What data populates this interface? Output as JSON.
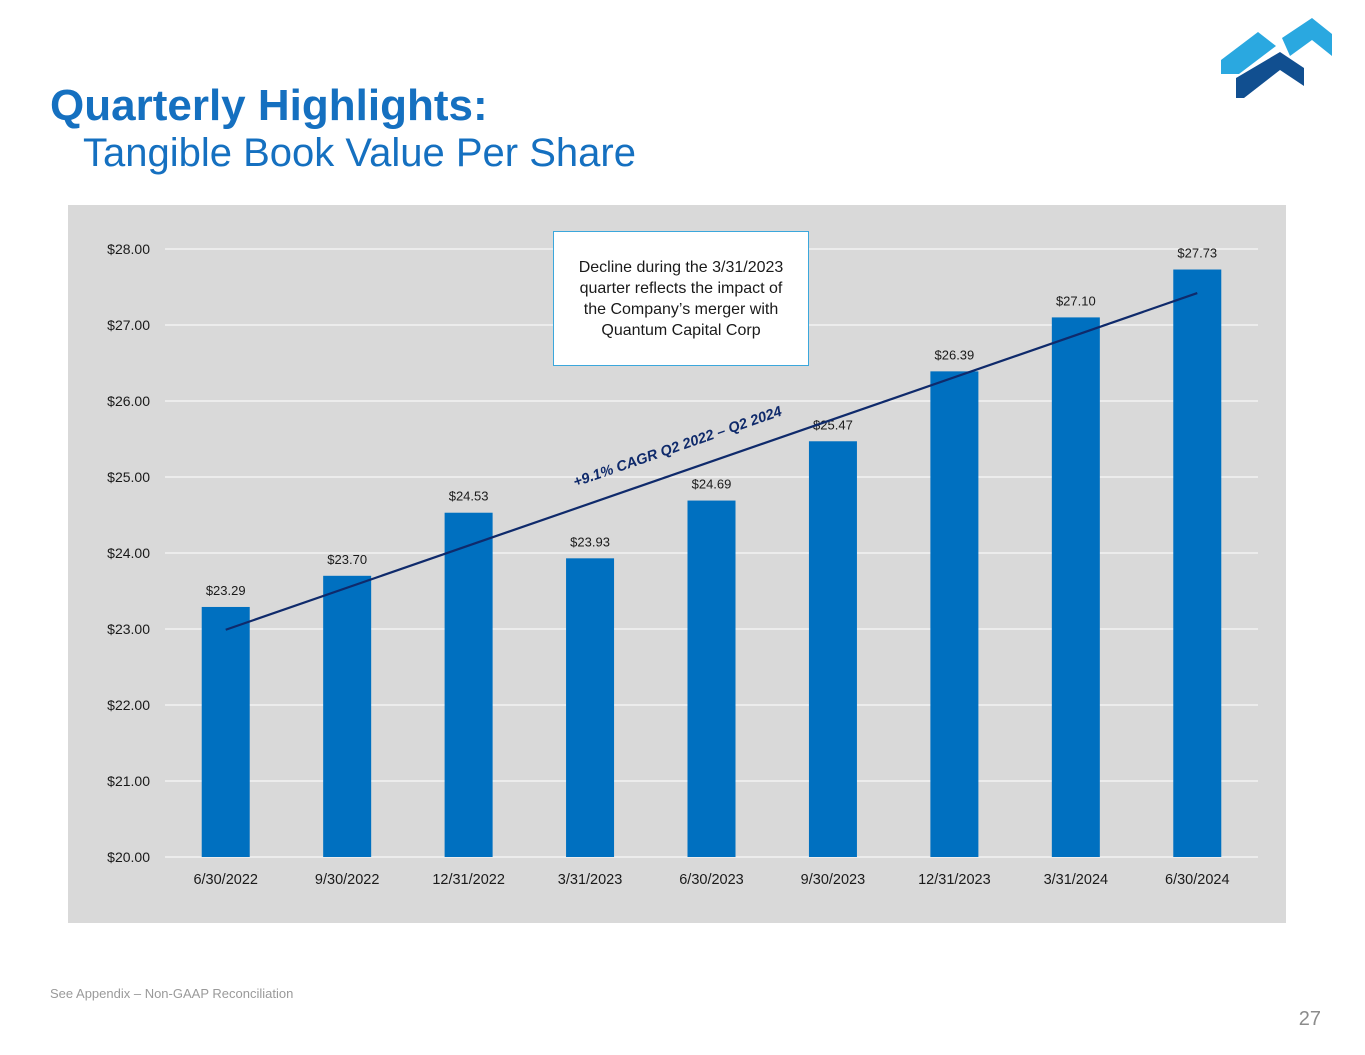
{
  "header": {
    "title": "Quarterly Highlights:",
    "subtitle": "Tangible Book Value Per Share"
  },
  "logo": {
    "icon": "company-logo",
    "colors": [
      "#2aa8e0",
      "#1a72bd",
      "#114f90"
    ]
  },
  "chart_data": {
    "type": "bar",
    "title": "",
    "xlabel": "",
    "ylabel": "",
    "categories": [
      "6/30/2022",
      "9/30/2022",
      "12/31/2022",
      "3/31/2023",
      "6/30/2023",
      "9/30/2023",
      "12/31/2023",
      "3/31/2024",
      "6/30/2024"
    ],
    "values": [
      23.29,
      23.7,
      24.53,
      23.93,
      24.69,
      25.47,
      26.39,
      27.1,
      27.73
    ],
    "data_labels": [
      "$23.29",
      "$23.70",
      "$24.53",
      "$23.93",
      "$24.69",
      "$25.47",
      "$26.39",
      "$27.10",
      "$27.73"
    ],
    "ylim": [
      20,
      28
    ],
    "yticks": [
      20,
      21,
      22,
      23,
      24,
      25,
      26,
      27,
      28
    ],
    "ytick_labels": [
      "$20.00",
      "$21.00",
      "$22.00",
      "$23.00",
      "$24.00",
      "$25.00",
      "$26.00",
      "$27.00",
      "$28.00"
    ],
    "grid": true,
    "legend": "none",
    "bar_color": "#0070c0",
    "trendline": {
      "label": "+9.1% CAGR Q2 2022 – Q2 2024",
      "start": {
        "category": "6/30/2022",
        "value": 22.99
      },
      "end": {
        "category": "6/30/2024",
        "value": 27.42
      },
      "color": "#0f2a6b"
    },
    "annotation": "Decline during the 3/31/2023 quarter reflects the impact of the Company’s merger with Quantum Capital Corp"
  },
  "footer": {
    "footnote": "See Appendix – Non-GAAP Reconciliation",
    "page_number": "27"
  }
}
